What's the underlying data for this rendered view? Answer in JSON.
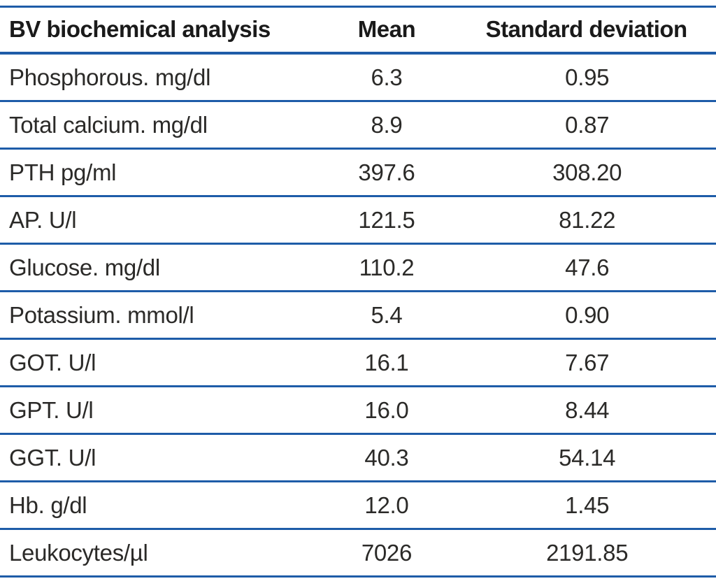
{
  "table": {
    "title": "BV biochemical analysis",
    "rule_color": "#1e5ca8",
    "text_color": "#2b2a28",
    "header_text_color": "#1a1a1a",
    "columns": [
      "BV biochemical analysis",
      "Mean",
      "Standard deviation"
    ],
    "rows": [
      {
        "label": "Phosphorous. mg/dl",
        "mean": "6.3",
        "sd": "0.95"
      },
      {
        "label": "Total calcium. mg/dl",
        "mean": "8.9",
        "sd": "0.87"
      },
      {
        "label": "PTH pg/ml",
        "mean": "397.6",
        "sd": "308.20"
      },
      {
        "label": "AP. U/l",
        "mean": "121.5",
        "sd": "81.22"
      },
      {
        "label": "Glucose. mg/dl",
        "mean": "110.2",
        "sd": "47.6"
      },
      {
        "label": "Potassium. mmol/l",
        "mean": "5.4",
        "sd": "0.90"
      },
      {
        "label": "GOT. U/l",
        "mean": "16.1",
        "sd": "7.67"
      },
      {
        "label": "GPT. U/l",
        "mean": "16.0",
        "sd": "8.44"
      },
      {
        "label": "GGT. U/l",
        "mean": "40.3",
        "sd": "54.14"
      },
      {
        "label": "Hb. g/dl",
        "mean": "12.0",
        "sd": "1.45"
      },
      {
        "label": "Leukocytes/µl",
        "mean": "7026",
        "sd": "2191.85"
      }
    ]
  }
}
